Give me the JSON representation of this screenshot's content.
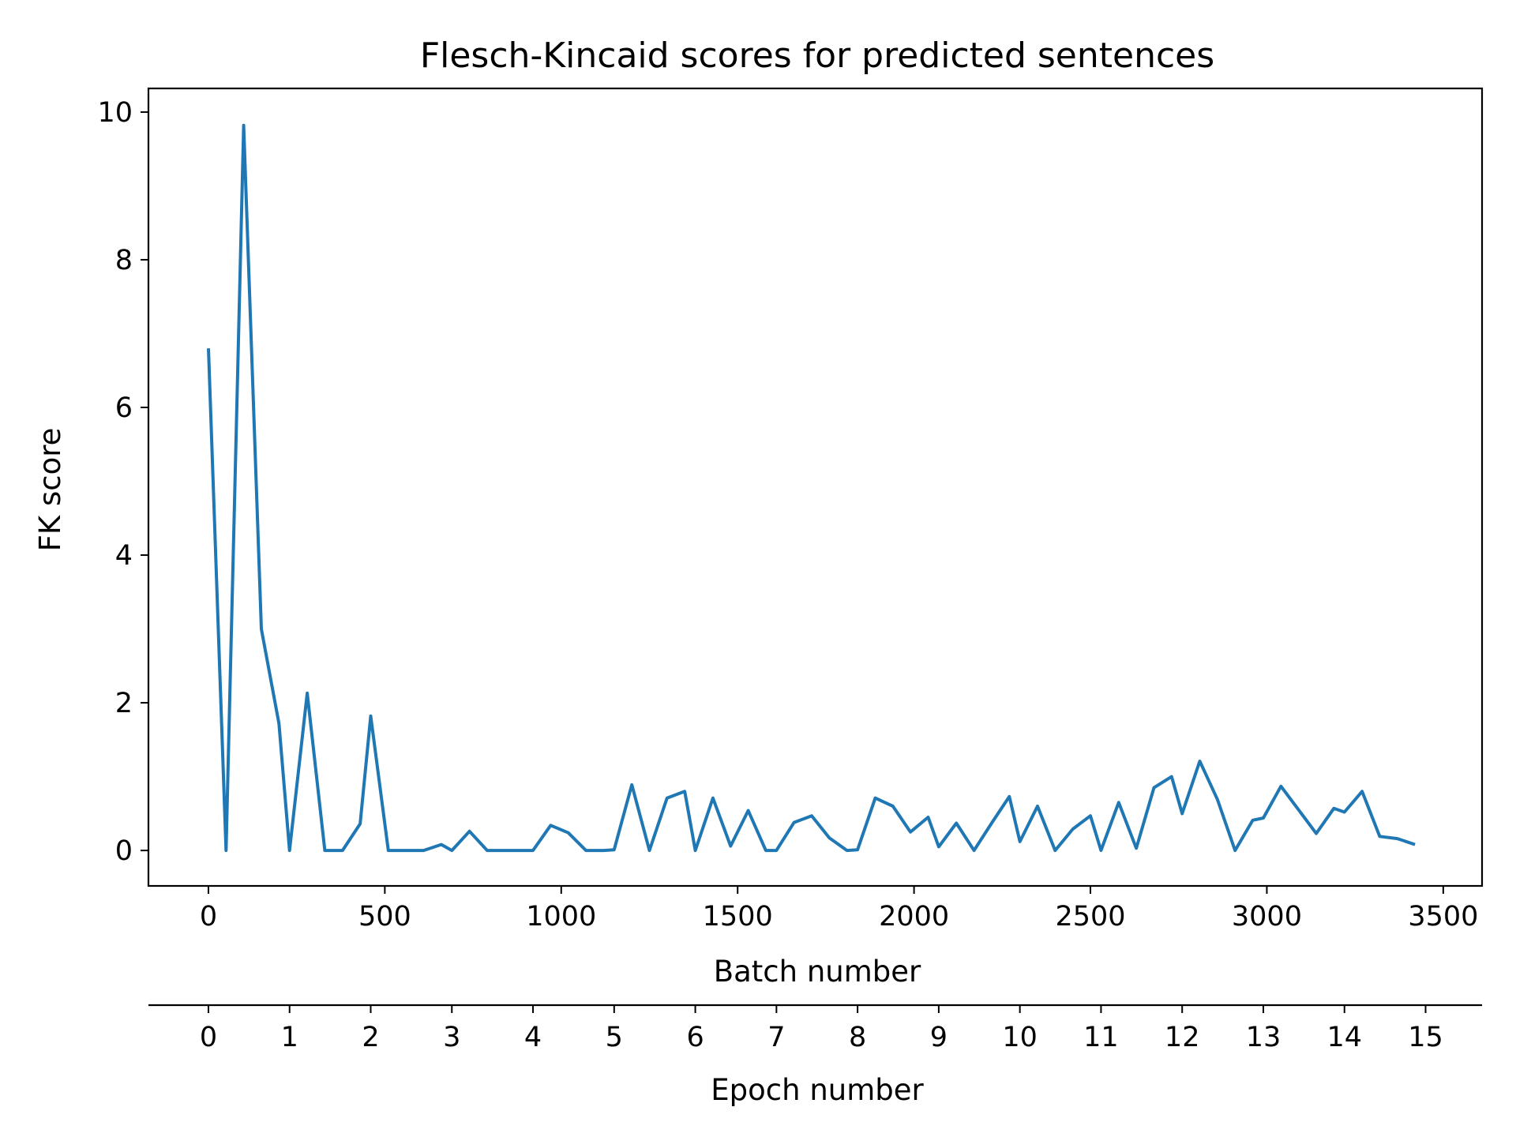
{
  "colors": {
    "line": "#1f77b4",
    "axes": "#000000",
    "background": "#ffffff"
  },
  "chart_data": {
    "type": "line",
    "title": "Flesch-Kincaid scores for predicted sentences",
    "xlabel": "Batch number",
    "ylabel": "FK score",
    "secondary_xlabel": "Epoch number",
    "xlim": [
      -170,
      3610
    ],
    "ylim": [
      -0.48,
      10.32
    ],
    "x_ticks": [
      0,
      500,
      1000,
      1500,
      2000,
      2500,
      3000,
      3500
    ],
    "x_tick_labels": [
      "0",
      "500",
      "1000",
      "1500",
      "2000",
      "2500",
      "3000",
      "3500"
    ],
    "y_ticks": [
      0,
      2,
      4,
      6,
      8,
      10
    ],
    "y_tick_labels": [
      "0",
      "2",
      "4",
      "6",
      "8",
      "10"
    ],
    "epoch_ticks": [
      0,
      1,
      2,
      3,
      4,
      5,
      6,
      7,
      8,
      9,
      10,
      11,
      12,
      13,
      14,
      15
    ],
    "epoch_tick_labels": [
      "0",
      "1",
      "2",
      "3",
      "4",
      "5",
      "6",
      "7",
      "8",
      "9",
      "10",
      "11",
      "12",
      "13",
      "14",
      "15"
    ],
    "batches_per_epoch": 230,
    "grid": false,
    "series": [
      {
        "x": [
          0,
          50,
          100,
          150,
          200,
          230,
          280,
          330,
          380,
          430,
          460,
          510,
          560,
          610,
          660,
          690,
          740,
          790,
          840,
          890,
          920,
          970,
          1020,
          1070,
          1120,
          1150,
          1200,
          1250,
          1300,
          1350,
          1380,
          1430,
          1480,
          1530,
          1580,
          1610,
          1660,
          1710,
          1760,
          1810,
          1840,
          1890,
          1940,
          1990,
          2040,
          2070,
          2120,
          2170,
          2220,
          2270,
          2300,
          2350,
          2400,
          2450,
          2500,
          2530,
          2580,
          2630,
          2680,
          2730,
          2760,
          2810,
          2860,
          2910,
          2960,
          2990,
          3040,
          3090,
          3140,
          3190,
          3220,
          3270,
          3320,
          3370,
          3420
        ],
        "y": [
          6.8,
          0.0,
          9.82,
          3.0,
          1.72,
          0.0,
          2.13,
          0.0,
          0.0,
          0.36,
          1.82,
          0.0,
          0.0,
          0.0,
          0.08,
          0.0,
          0.26,
          0.0,
          0.0,
          0.0,
          0.0,
          0.34,
          0.24,
          0.0,
          0.0,
          0.01,
          0.89,
          0.0,
          0.71,
          0.8,
          0.0,
          0.71,
          0.06,
          0.54,
          0.0,
          0.0,
          0.38,
          0.47,
          0.17,
          0.0,
          0.01,
          0.71,
          0.6,
          0.25,
          0.45,
          0.05,
          0.37,
          0.0,
          0.37,
          0.73,
          0.12,
          0.6,
          0.0,
          0.29,
          0.47,
          0.0,
          0.65,
          0.03,
          0.85,
          1.0,
          0.5,
          1.21,
          0.69,
          0.0,
          0.41,
          0.44,
          0.87,
          0.55,
          0.23,
          0.57,
          0.52,
          0.8,
          0.19,
          0.16,
          0.08
        ]
      }
    ]
  }
}
